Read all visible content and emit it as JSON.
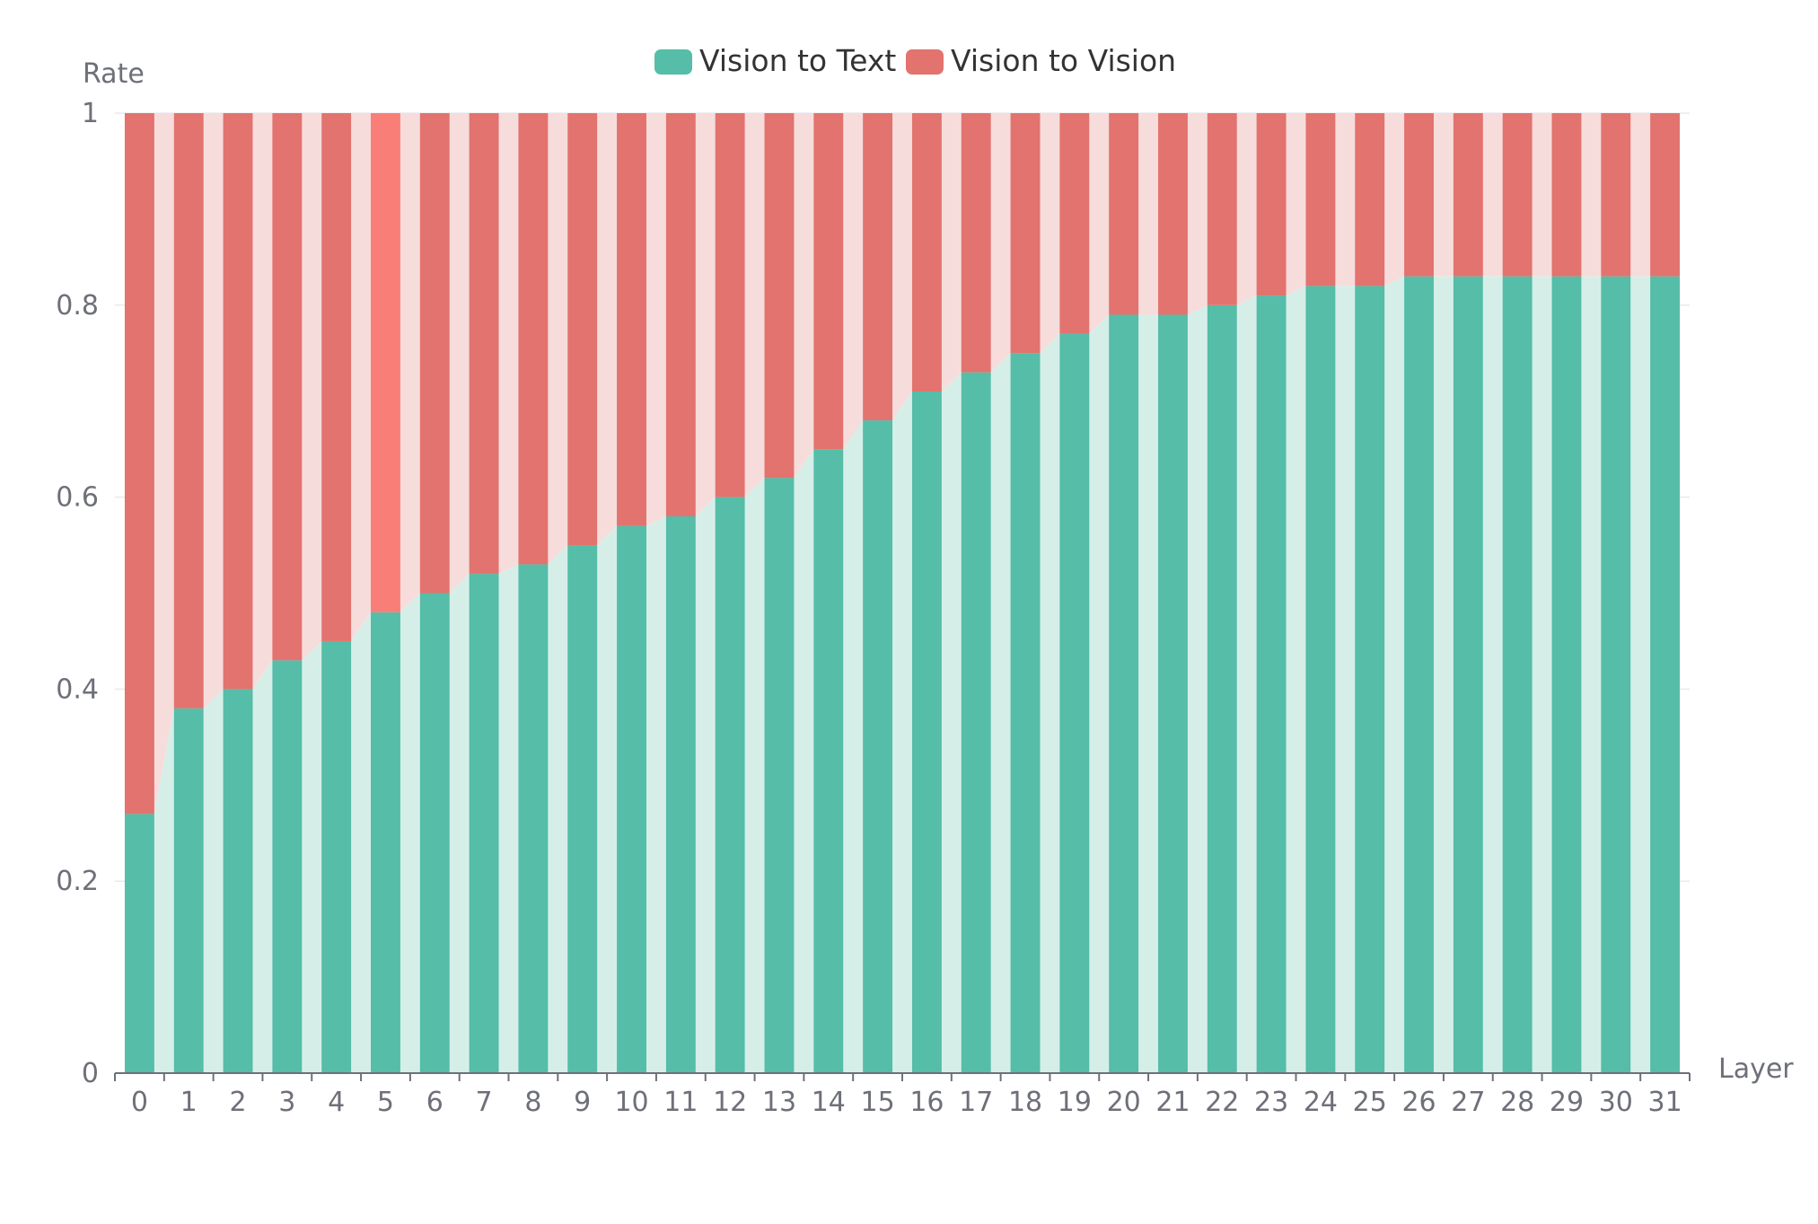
{
  "chart_data": {
    "type": "bar",
    "stacked": true,
    "normalized": true,
    "categories": [
      "0",
      "1",
      "2",
      "3",
      "4",
      "5",
      "6",
      "7",
      "8",
      "9",
      "10",
      "11",
      "12",
      "13",
      "14",
      "15",
      "16",
      "17",
      "18",
      "19",
      "20",
      "21",
      "22",
      "23",
      "24",
      "25",
      "26",
      "27",
      "28",
      "29",
      "30",
      "31"
    ],
    "series": [
      {
        "name": "Vision to Text",
        "color": "#55bda8",
        "band_color": "#d5efe8",
        "values": [
          0.27,
          0.38,
          0.4,
          0.43,
          0.45,
          0.48,
          0.5,
          0.52,
          0.53,
          0.55,
          0.57,
          0.58,
          0.6,
          0.62,
          0.65,
          0.68,
          0.71,
          0.73,
          0.75,
          0.77,
          0.79,
          0.79,
          0.8,
          0.81,
          0.82,
          0.82,
          0.83,
          0.83,
          0.83,
          0.83,
          0.83,
          0.83
        ]
      },
      {
        "name": "Vision to Vision",
        "color": "#e2736e",
        "band_color": "#f7dcdc",
        "highlight_color": "#f97e78",
        "highlight_index": 5,
        "values": [
          0.73,
          0.62,
          0.6,
          0.57,
          0.55,
          0.52,
          0.5,
          0.48,
          0.47,
          0.45,
          0.43,
          0.42,
          0.4,
          0.38,
          0.35,
          0.32,
          0.29,
          0.27,
          0.25,
          0.23,
          0.21,
          0.21,
          0.2,
          0.19,
          0.18,
          0.18,
          0.17,
          0.17,
          0.17,
          0.17,
          0.17,
          0.17
        ]
      }
    ],
    "xlabel": "Layer",
    "ylabel": "Rate",
    "ylim": [
      0,
      1
    ],
    "yticks": [
      "0",
      "0.2",
      "0.4",
      "0.6",
      "0.8",
      "1"
    ],
    "legend_position": "top-center",
    "grid": true
  }
}
